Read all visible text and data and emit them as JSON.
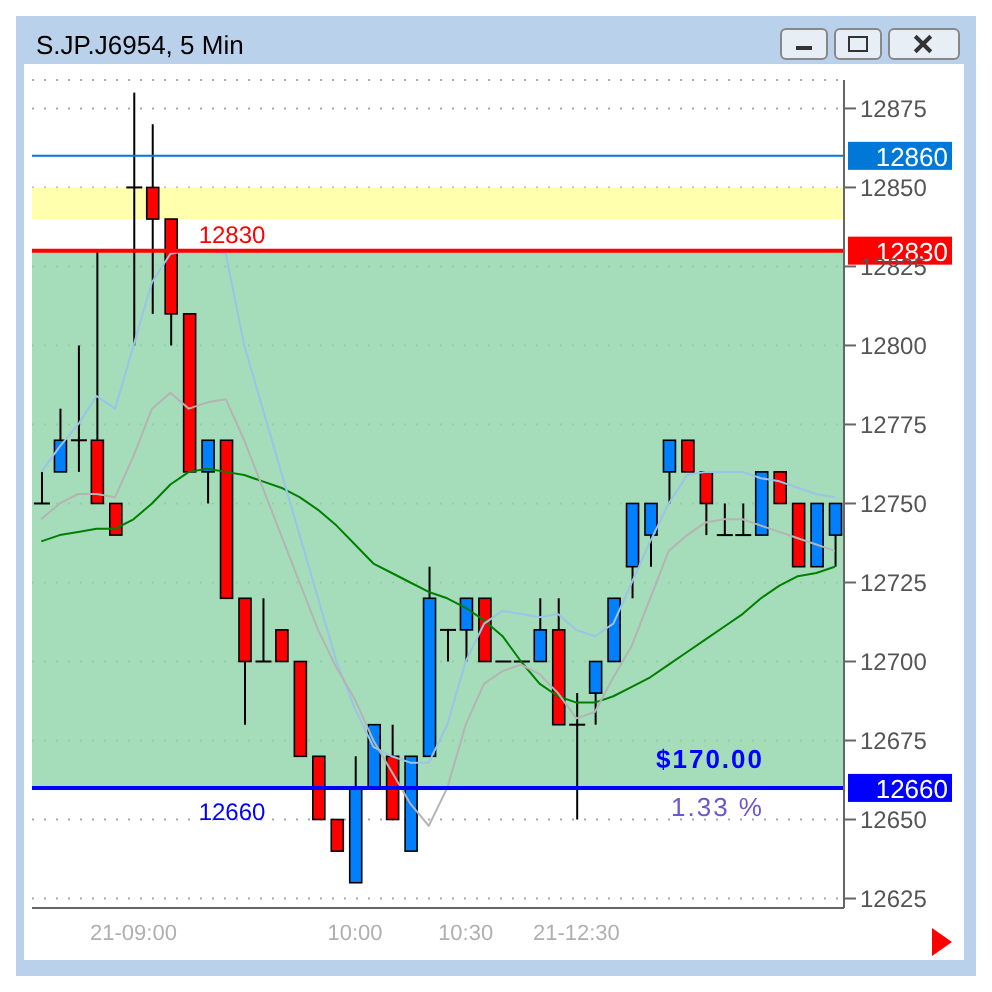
{
  "chart_data": {
    "type": "candlestick",
    "title": "S.JP.J6954, 5 Min",
    "categories": [
      null,
      null,
      null,
      null,
      null,
      "21-09:00",
      null,
      null,
      null,
      null,
      null,
      null,
      null,
      null,
      null,
      null,
      null,
      "10:00",
      null,
      null,
      null,
      null,
      null,
      "10:30",
      null,
      null,
      null,
      null,
      null,
      "21-12:30",
      null,
      null,
      null,
      null,
      null,
      null,
      null,
      null,
      null,
      null,
      null,
      null,
      null,
      null
    ],
    "ohlc": [
      [
        12750,
        12760,
        12750,
        12750
      ],
      [
        12760,
        12780,
        12760,
        12770
      ],
      [
        12770,
        12800,
        12760,
        12770
      ],
      [
        12770,
        12830,
        12750,
        12750
      ],
      [
        12750,
        12750,
        12740,
        12740
      ],
      [
        12850,
        12880,
        12800,
        12850
      ],
      [
        12850,
        12870,
        12810,
        12840
      ],
      [
        12840,
        12840,
        12800,
        12810
      ],
      [
        12810,
        12810,
        12760,
        12760
      ],
      [
        12760,
        12770,
        12750,
        12770
      ],
      [
        12770,
        12770,
        12720,
        12720
      ],
      [
        12720,
        12720,
        12680,
        12700
      ],
      [
        12700,
        12720,
        12700,
        12700
      ],
      [
        12710,
        12710,
        12700,
        12700
      ],
      [
        12700,
        12700,
        12670,
        12670
      ],
      [
        12670,
        12670,
        12650,
        12650
      ],
      [
        12650,
        12650,
        12640,
        12640
      ],
      [
        12630,
        12670,
        12630,
        12660
      ],
      [
        12660,
        12680,
        12660,
        12680
      ],
      [
        12670,
        12680,
        12650,
        12650
      ],
      [
        12640,
        12670,
        12640,
        12670
      ],
      [
        12670,
        12730,
        12670,
        12720
      ],
      [
        12710,
        12710,
        12700,
        12710
      ],
      [
        12710,
        12720,
        12700,
        12720
      ],
      [
        12720,
        12720,
        12700,
        12700
      ],
      [
        12700,
        12700,
        12700,
        12700
      ],
      [
        12700,
        12700,
        12700,
        12700
      ],
      [
        12700,
        12720,
        12700,
        12710
      ],
      [
        12710,
        12720,
        12680,
        12680
      ],
      [
        12680,
        12690,
        12650,
        12680
      ],
      [
        12690,
        12700,
        12680,
        12700
      ],
      [
        12700,
        12720,
        12700,
        12720
      ],
      [
        12730,
        12750,
        12720,
        12750
      ],
      [
        12740,
        12750,
        12730,
        12750
      ],
      [
        12760,
        12770,
        12750,
        12770
      ],
      [
        12770,
        12770,
        12760,
        12760
      ],
      [
        12760,
        12760,
        12740,
        12750
      ],
      [
        12740,
        12750,
        12740,
        12740
      ],
      [
        12740,
        12750,
        12740,
        12740
      ],
      [
        12740,
        12760,
        12740,
        12760
      ],
      [
        12760,
        12760,
        12750,
        12750
      ],
      [
        12750,
        12750,
        12730,
        12730
      ],
      [
        12730,
        12750,
        12730,
        12750
      ],
      [
        12740,
        12750,
        12730,
        12750
      ]
    ],
    "series": [
      {
        "type": "line",
        "color": "#008000",
        "values": [
          12738,
          12740,
          12741,
          12742,
          12742,
          12745,
          12750,
          12756,
          12760,
          12761,
          12760,
          12759,
          12757,
          12755,
          12752,
          12748,
          12743,
          12737,
          12731,
          12728,
          12725,
          12722,
          12720,
          12717,
          12713,
          12708,
          12700,
          12693,
          12689,
          12687,
          12687,
          12689,
          12692,
          12695,
          12699,
          12703,
          12707,
          12711,
          12715,
          12720,
          12724,
          12727,
          12728,
          12730
        ]
      },
      {
        "type": "line",
        "color": "#9cc3e8",
        "values": [
          12760,
          12768,
          12775,
          12784,
          12780,
          12800,
          12820,
          12829,
          12830,
          12830,
          12829,
          12800,
          12780,
          12760,
          12740,
          12720,
          12700,
          12685,
          12673,
          12670,
          12668,
          12668,
          12680,
          12700,
          12712,
          12716,
          12715,
          12714,
          12715,
          12710,
          12708,
          12712,
          12725,
          12738,
          12750,
          12759,
          12760,
          12760,
          12760,
          12758,
          12757,
          12755,
          12753,
          12752
        ]
      },
      {
        "type": "line",
        "color": "#b4b4b4",
        "values": [
          12745,
          12750,
          12753,
          12753,
          12752,
          12765,
          12780,
          12785,
          12780,
          12782,
          12783,
          12770,
          12755,
          12740,
          12725,
          12710,
          12698,
          12688,
          12675,
          12665,
          12655,
          12648,
          12660,
          12680,
          12693,
          12697,
          12699,
          12696,
          12690,
          12682,
          12684,
          12695,
          12705,
          12720,
          12735,
          12740,
          12744,
          12745,
          12745,
          12743,
          12741,
          12739,
          12737,
          12735
        ]
      }
    ],
    "ylim": [
      12622,
      12884
    ],
    "yticks": [
      12625,
      12650,
      12675,
      12700,
      12725,
      12750,
      12775,
      12800,
      12825,
      12850,
      12875
    ],
    "ref_lines": [
      {
        "axis": "y",
        "value": 12860,
        "label": "12860",
        "color": "#0078d7"
      },
      {
        "axis": "y",
        "value": 12830,
        "label": "12830",
        "color": "#ff0000"
      },
      {
        "axis": "y",
        "value": 12660,
        "label": "12660",
        "color": "#0000ff"
      }
    ],
    "bands": [
      {
        "axis": "y",
        "from": 12840,
        "to": 12850,
        "color": "#ffff99"
      },
      {
        "axis": "y",
        "from": 12660,
        "to": 12830,
        "color": "#8fd3a8"
      }
    ],
    "annotations": [
      "$170.00",
      "1.33 %"
    ],
    "grid": "y"
  }
}
